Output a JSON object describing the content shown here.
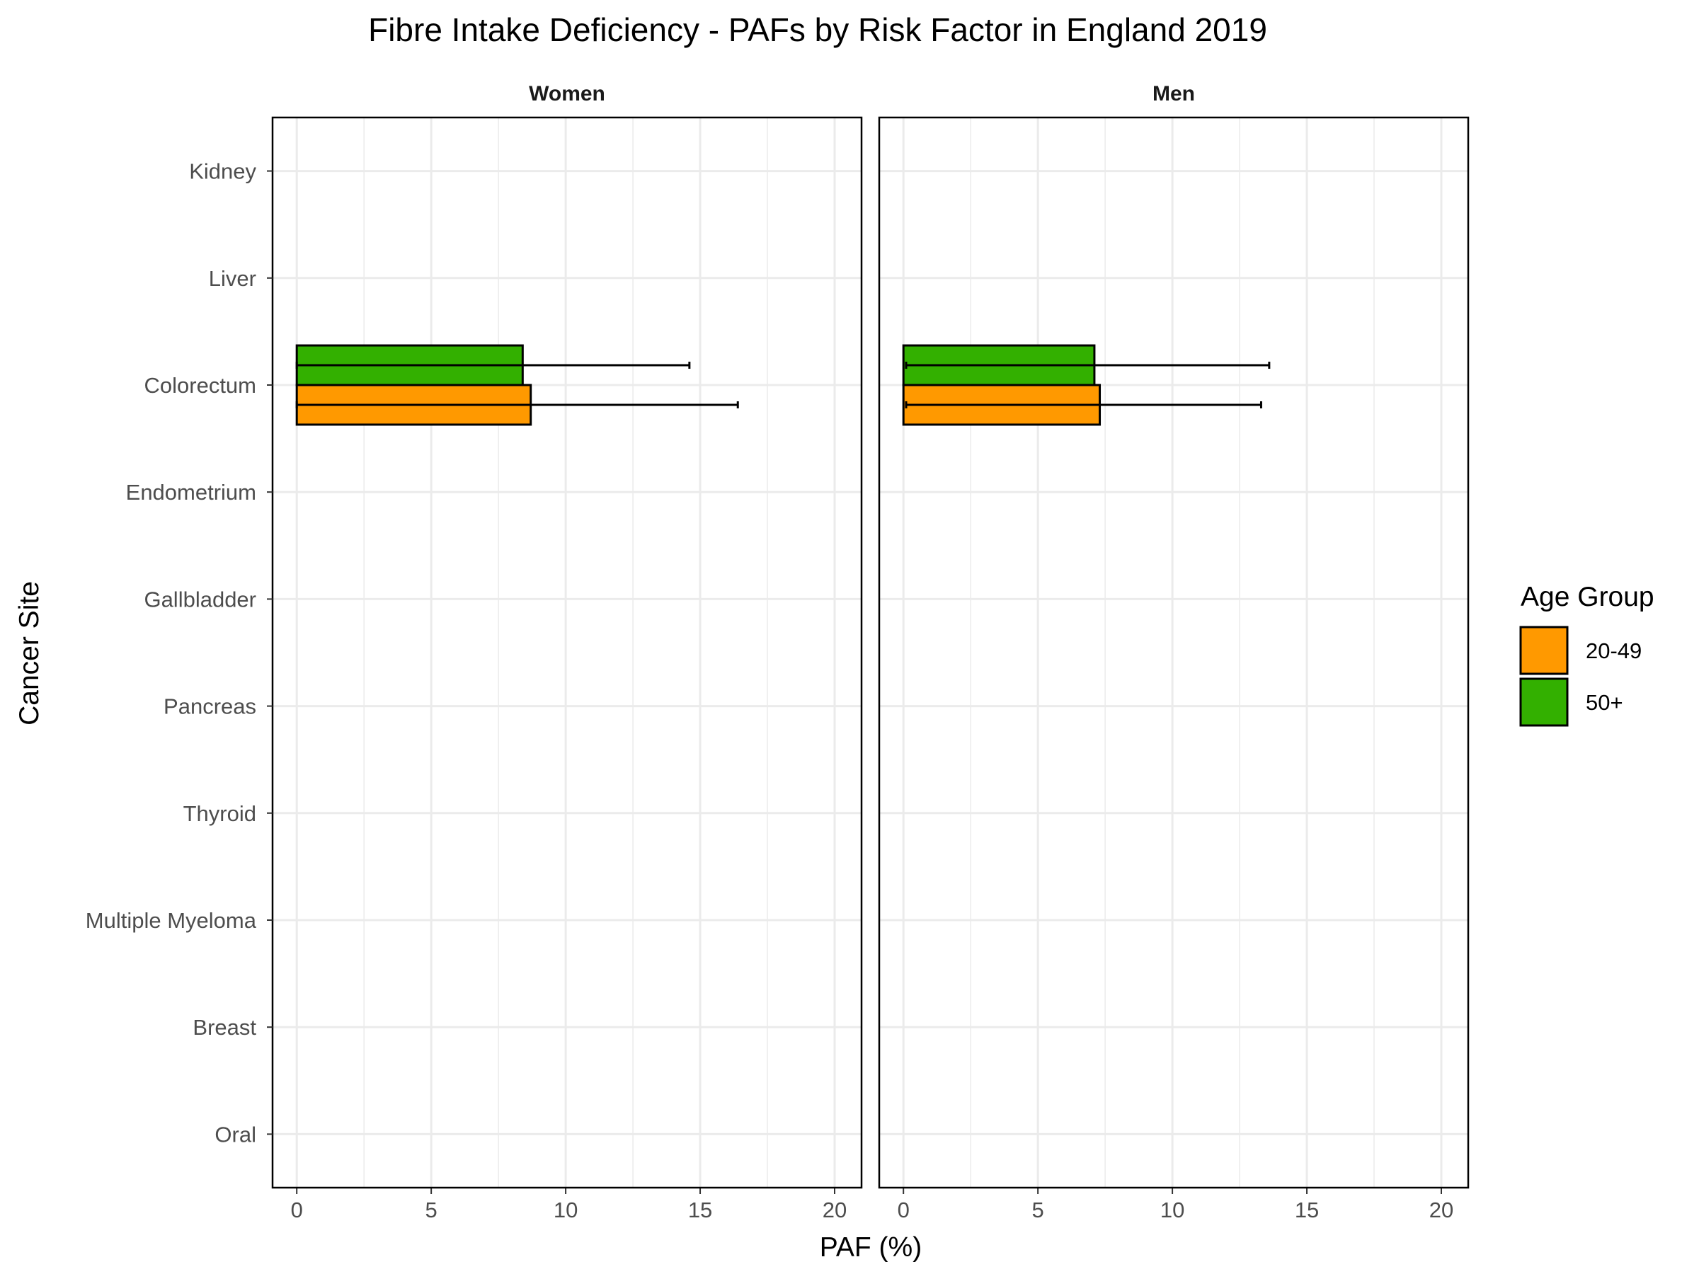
{
  "chart_data": {
    "type": "bar",
    "orientation": "horizontal",
    "title": "Fibre Intake Deficiency  - PAFs by Risk Factor in England 2019",
    "xlabel": "PAF (%)",
    "ylabel": "Cancer Site",
    "xlim": [
      -0.9,
      21
    ],
    "x_ticks": [
      0,
      5,
      10,
      15,
      20
    ],
    "grid": true,
    "legend_position": "right",
    "legend_title": "Age Group",
    "categories": [
      "Kidney",
      "Liver",
      "Colorectum",
      "Endometrium",
      "Gallbladder",
      "Pancreas",
      "Thyroid",
      "Multiple Myeloma",
      "Breast",
      "Oral"
    ],
    "series": [
      {
        "name": "20-49",
        "color": "#ff9900"
      },
      {
        "name": "50+",
        "color": "#33b000"
      }
    ],
    "panels": [
      {
        "label": "Women",
        "data": {
          "20-49": {
            "values": [
              0,
              0,
              8.7,
              0,
              0,
              0,
              0,
              0,
              0,
              0
            ],
            "ci_low": [
              0,
              0,
              0,
              0,
              0,
              0,
              0,
              0,
              0,
              0
            ],
            "ci_high": [
              0,
              0,
              16.4,
              0,
              0,
              0,
              0,
              0,
              0,
              0
            ]
          },
          "50+": {
            "values": [
              0,
              0,
              8.4,
              0,
              0,
              0,
              0,
              0,
              0,
              0
            ],
            "ci_low": [
              0,
              0,
              0,
              0,
              0,
              0,
              0,
              0,
              0,
              0
            ],
            "ci_high": [
              0,
              0,
              14.6,
              0,
              0,
              0,
              0,
              0,
              0,
              0
            ]
          }
        }
      },
      {
        "label": "Men",
        "data": {
          "20-49": {
            "values": [
              0,
              0,
              7.3,
              0,
              0,
              0,
              0,
              0,
              0,
              0
            ],
            "ci_low": [
              0,
              0,
              0.1,
              0,
              0,
              0,
              0,
              0,
              0,
              0
            ],
            "ci_high": [
              0,
              0,
              13.3,
              0,
              0,
              0,
              0,
              0,
              0,
              0
            ]
          },
          "50+": {
            "values": [
              0,
              0,
              7.1,
              0,
              0,
              0,
              0,
              0,
              0,
              0
            ],
            "ci_low": [
              0,
              0,
              0.1,
              0,
              0,
              0,
              0,
              0,
              0,
              0
            ],
            "ci_high": [
              0,
              0,
              13.6,
              0,
              0,
              0,
              0,
              0,
              0,
              0
            ]
          }
        }
      }
    ]
  }
}
